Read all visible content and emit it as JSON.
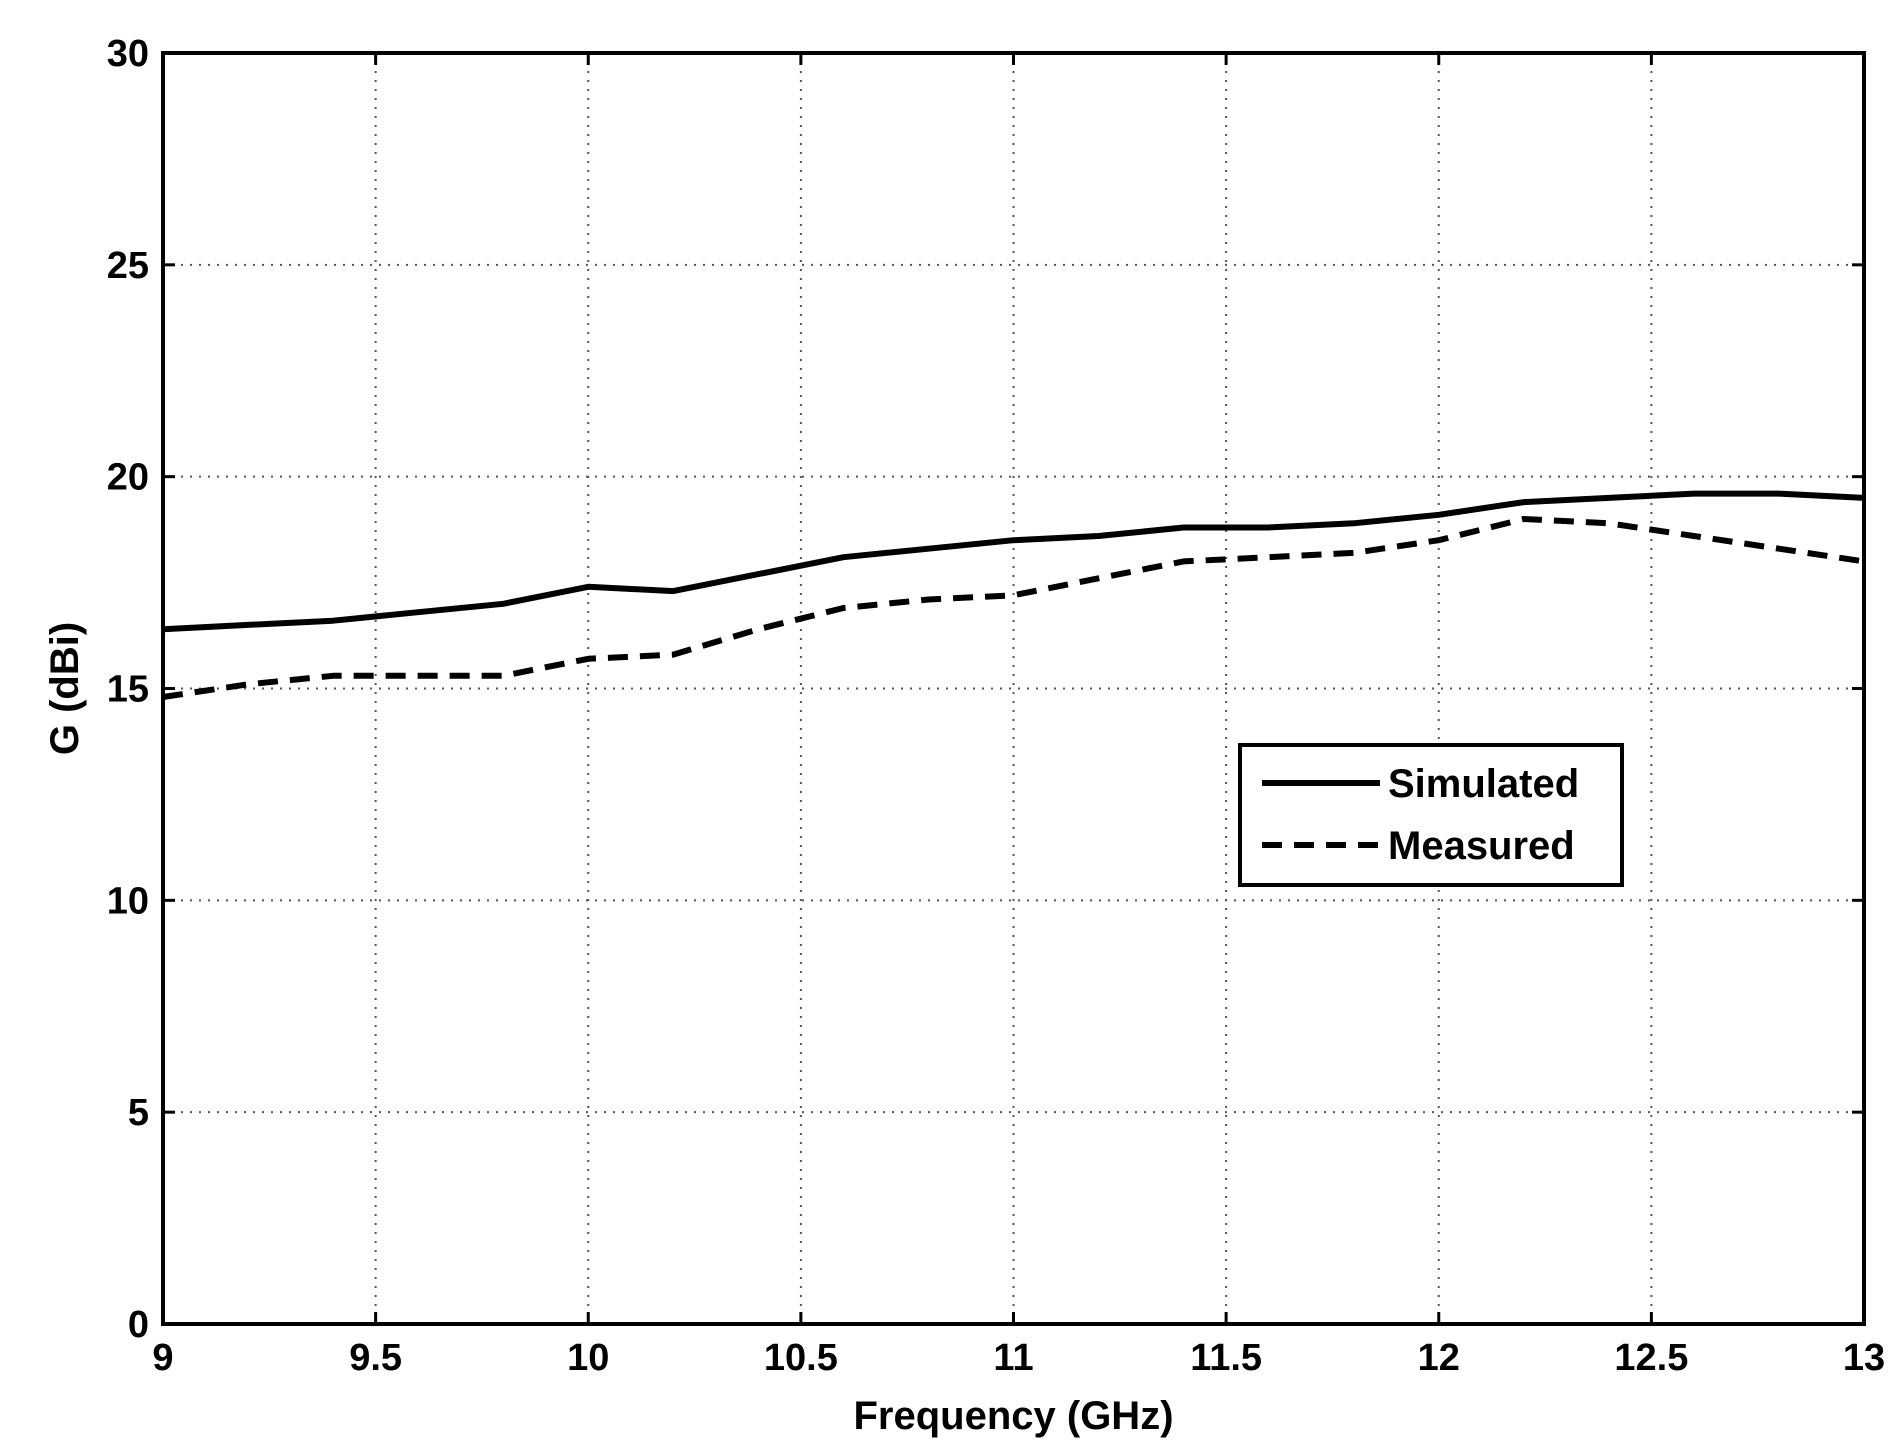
{
  "chart_data": {
    "type": "line",
    "title": "",
    "xlabel": "Frequency (GHz)",
    "ylabel": "G (dBi)",
    "xlim": [
      9,
      13
    ],
    "ylim": [
      0,
      30
    ],
    "xticks": [
      9,
      9.5,
      10,
      10.5,
      11,
      11.5,
      12,
      12.5,
      13
    ],
    "xtick_labels": [
      "9",
      "9.5",
      "10",
      "10.5",
      "11",
      "11.5",
      "12",
      "12.5",
      "13"
    ],
    "yticks": [
      0,
      5,
      10,
      15,
      20,
      25,
      30
    ],
    "ytick_labels": [
      "0",
      "5",
      "10",
      "15",
      "20",
      "25",
      "30"
    ],
    "grid": true,
    "legend_position": "center-right",
    "series": [
      {
        "name": "Simulated",
        "style": "solid",
        "color": "#000000",
        "x": [
          9,
          9.2,
          9.4,
          9.6,
          9.8,
          10,
          10.2,
          10.4,
          10.6,
          10.8,
          11,
          11.2,
          11.4,
          11.6,
          11.8,
          12,
          12.2,
          12.4,
          12.6,
          12.8,
          13
        ],
        "y": [
          16.4,
          16.5,
          16.6,
          16.8,
          17.0,
          17.4,
          17.3,
          17.7,
          18.1,
          18.3,
          18.5,
          18.6,
          18.8,
          18.8,
          18.9,
          19.1,
          19.4,
          19.5,
          19.6,
          19.6,
          19.5
        ]
      },
      {
        "name": "Measured",
        "style": "dashed",
        "color": "#000000",
        "x": [
          9,
          9.2,
          9.4,
          9.6,
          9.8,
          10,
          10.2,
          10.4,
          10.6,
          10.8,
          11,
          11.2,
          11.4,
          11.6,
          11.8,
          12,
          12.2,
          12.4,
          12.6,
          12.8,
          13
        ],
        "y": [
          14.8,
          15.1,
          15.3,
          15.3,
          15.3,
          15.7,
          15.8,
          16.4,
          16.9,
          17.1,
          17.2,
          17.6,
          18.0,
          18.1,
          18.2,
          18.5,
          19.0,
          18.9,
          18.6,
          18.3,
          18.0
        ]
      }
    ]
  }
}
